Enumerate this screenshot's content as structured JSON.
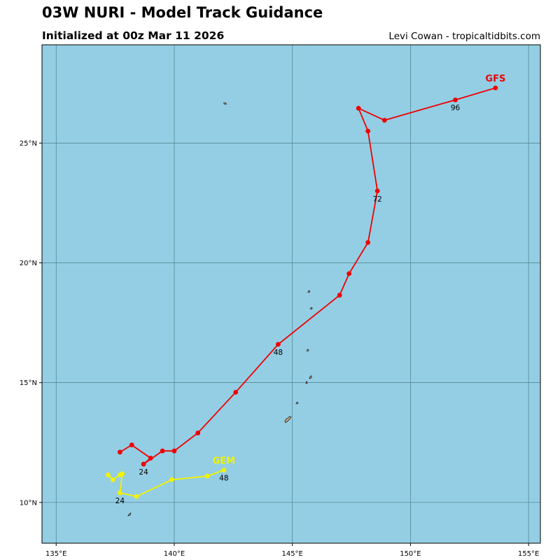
{
  "header": {
    "title": "03W NURI - Model Track Guidance",
    "subtitle": "Initialized at 00z Mar 11 2026",
    "credit": "Levi Cowan - tropicaltidbits.com"
  },
  "colors": {
    "ocean": "#94cee4",
    "land": "#c9a878",
    "grid": "#4e7f86",
    "gfs": "#ee0000",
    "gem": "#f2f200"
  },
  "map": {
    "lon_range": [
      134.4,
      155.5
    ],
    "lat_range": [
      8.3,
      29.1
    ],
    "lon_ticks": [
      135,
      140,
      145,
      150,
      155
    ],
    "lon_tick_labels": [
      "135°E",
      "140°E",
      "145°E",
      "150°E",
      "155°E"
    ],
    "lat_ticks": [
      10,
      15,
      20,
      25
    ],
    "lat_tick_labels": [
      "10°N",
      "15°N",
      "20°N",
      "25°N"
    ]
  },
  "tracks": [
    {
      "name": "GFS",
      "color_key": "gfs",
      "points": [
        [
          137.7,
          12.1
        ],
        [
          138.2,
          12.4
        ],
        [
          139.0,
          11.85
        ],
        [
          138.7,
          11.6
        ],
        [
          139.5,
          12.15
        ],
        [
          140.0,
          12.15
        ],
        [
          141.0,
          12.9
        ],
        [
          142.6,
          14.6
        ],
        [
          144.4,
          16.6
        ],
        [
          147.0,
          18.65
        ],
        [
          147.4,
          19.55
        ],
        [
          148.2,
          20.85
        ],
        [
          148.6,
          23.0
        ],
        [
          148.2,
          25.5
        ],
        [
          147.8,
          26.45
        ],
        [
          148.9,
          25.95
        ],
        [
          151.9,
          26.8
        ],
        [
          153.6,
          27.3
        ]
      ],
      "labels": [
        {
          "text": "24",
          "point_index": 3
        },
        {
          "text": "48",
          "point_index": 8
        },
        {
          "text": "72",
          "point_index": 12
        },
        {
          "text": "96",
          "point_index": 16
        }
      ]
    },
    {
      "name": "GEM",
      "color_key": "gem",
      "points": [
        [
          137.2,
          11.15
        ],
        [
          137.4,
          10.95
        ],
        [
          137.7,
          11.15
        ],
        [
          137.8,
          11.2
        ],
        [
          137.7,
          10.4
        ],
        [
          138.4,
          10.25
        ],
        [
          139.9,
          10.95
        ],
        [
          141.4,
          11.1
        ],
        [
          142.1,
          11.35
        ]
      ],
      "labels": [
        {
          "text": "24",
          "point_index": 4
        },
        {
          "text": "48",
          "point_index": 8
        }
      ]
    }
  ],
  "islands": [
    {
      "name": "island-north",
      "lon": 142.15,
      "lat": 26.65
    },
    {
      "name": "island-maug",
      "lon": 145.7,
      "lat": 18.8
    },
    {
      "name": "island-agrihan",
      "lon": 145.8,
      "lat": 18.1
    },
    {
      "name": "island-anatahan",
      "lon": 145.65,
      "lat": 16.35
    },
    {
      "name": "island-saipan",
      "lon": 145.75,
      "lat": 15.2
    },
    {
      "name": "island-tinian",
      "lon": 145.6,
      "lat": 15.0
    },
    {
      "name": "island-rota",
      "lon": 145.2,
      "lat": 14.15
    },
    {
      "name": "island-guam",
      "lon": 144.8,
      "lat": 13.45
    },
    {
      "name": "island-ulithi",
      "lon": 138.1,
      "lat": 9.5
    }
  ]
}
